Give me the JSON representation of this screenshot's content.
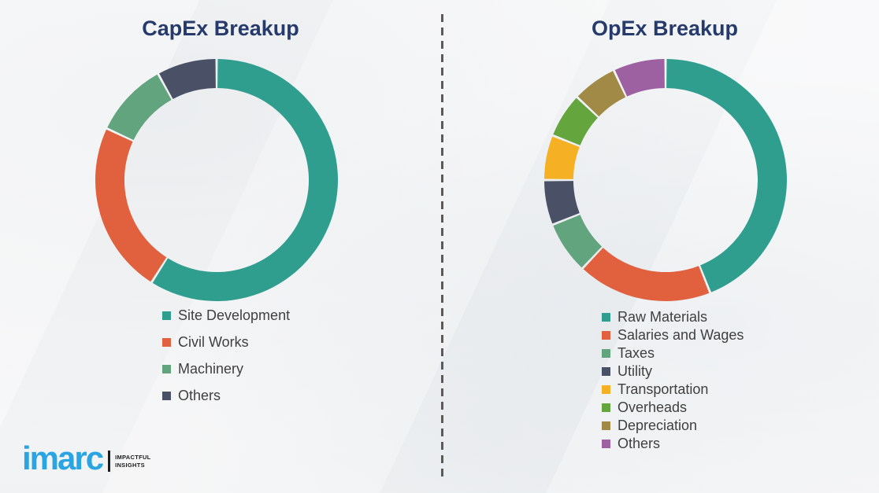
{
  "style": {
    "title_color": "#263a6b",
    "legend_text_color": "#404040",
    "divider_color": "#5a5a5a",
    "brand_color": "#29a5e3",
    "background_color": "#f3f4f5"
  },
  "logo": {
    "brand": "imarc",
    "tagline_line1": "IMPACTFUL",
    "tagline_line2": "INSIGHTS"
  },
  "chart_data": [
    {
      "type": "pie",
      "subtype": "donut",
      "title": "CapEx Breakup",
      "labels": [
        "Site Development",
        "Civil Works",
        "Machinery",
        "Others"
      ],
      "values": [
        59,
        23,
        10,
        8
      ],
      "units": "percent (estimated from arc angles; no data labels shown)",
      "colors": [
        "#2f9e8f",
        "#e1603e",
        "#61a47d",
        "#4a5166"
      ],
      "start_angle_deg": 0,
      "direction": "clockwise",
      "inner_radius_ratio": 0.76,
      "legend_position": "below-chart-left",
      "grid": false
    },
    {
      "type": "pie",
      "subtype": "donut",
      "title": "OpEx Breakup",
      "labels": [
        "Raw Materials",
        "Salaries and Wages",
        "Taxes",
        "Utility",
        "Transportation",
        "Overheads",
        "Depreciation",
        "Others"
      ],
      "values": [
        44,
        18,
        7,
        6,
        6,
        6,
        6,
        7
      ],
      "units": "percent (estimated from arc angles; no data labels shown)",
      "colors": [
        "#2f9e8f",
        "#e1603e",
        "#61a47d",
        "#4a5166",
        "#f5b123",
        "#64a53d",
        "#a08a45",
        "#9d60a0"
      ],
      "start_angle_deg": 0,
      "direction": "clockwise",
      "inner_radius_ratio": 0.76,
      "legend_position": "below-chart-left",
      "grid": false
    }
  ]
}
